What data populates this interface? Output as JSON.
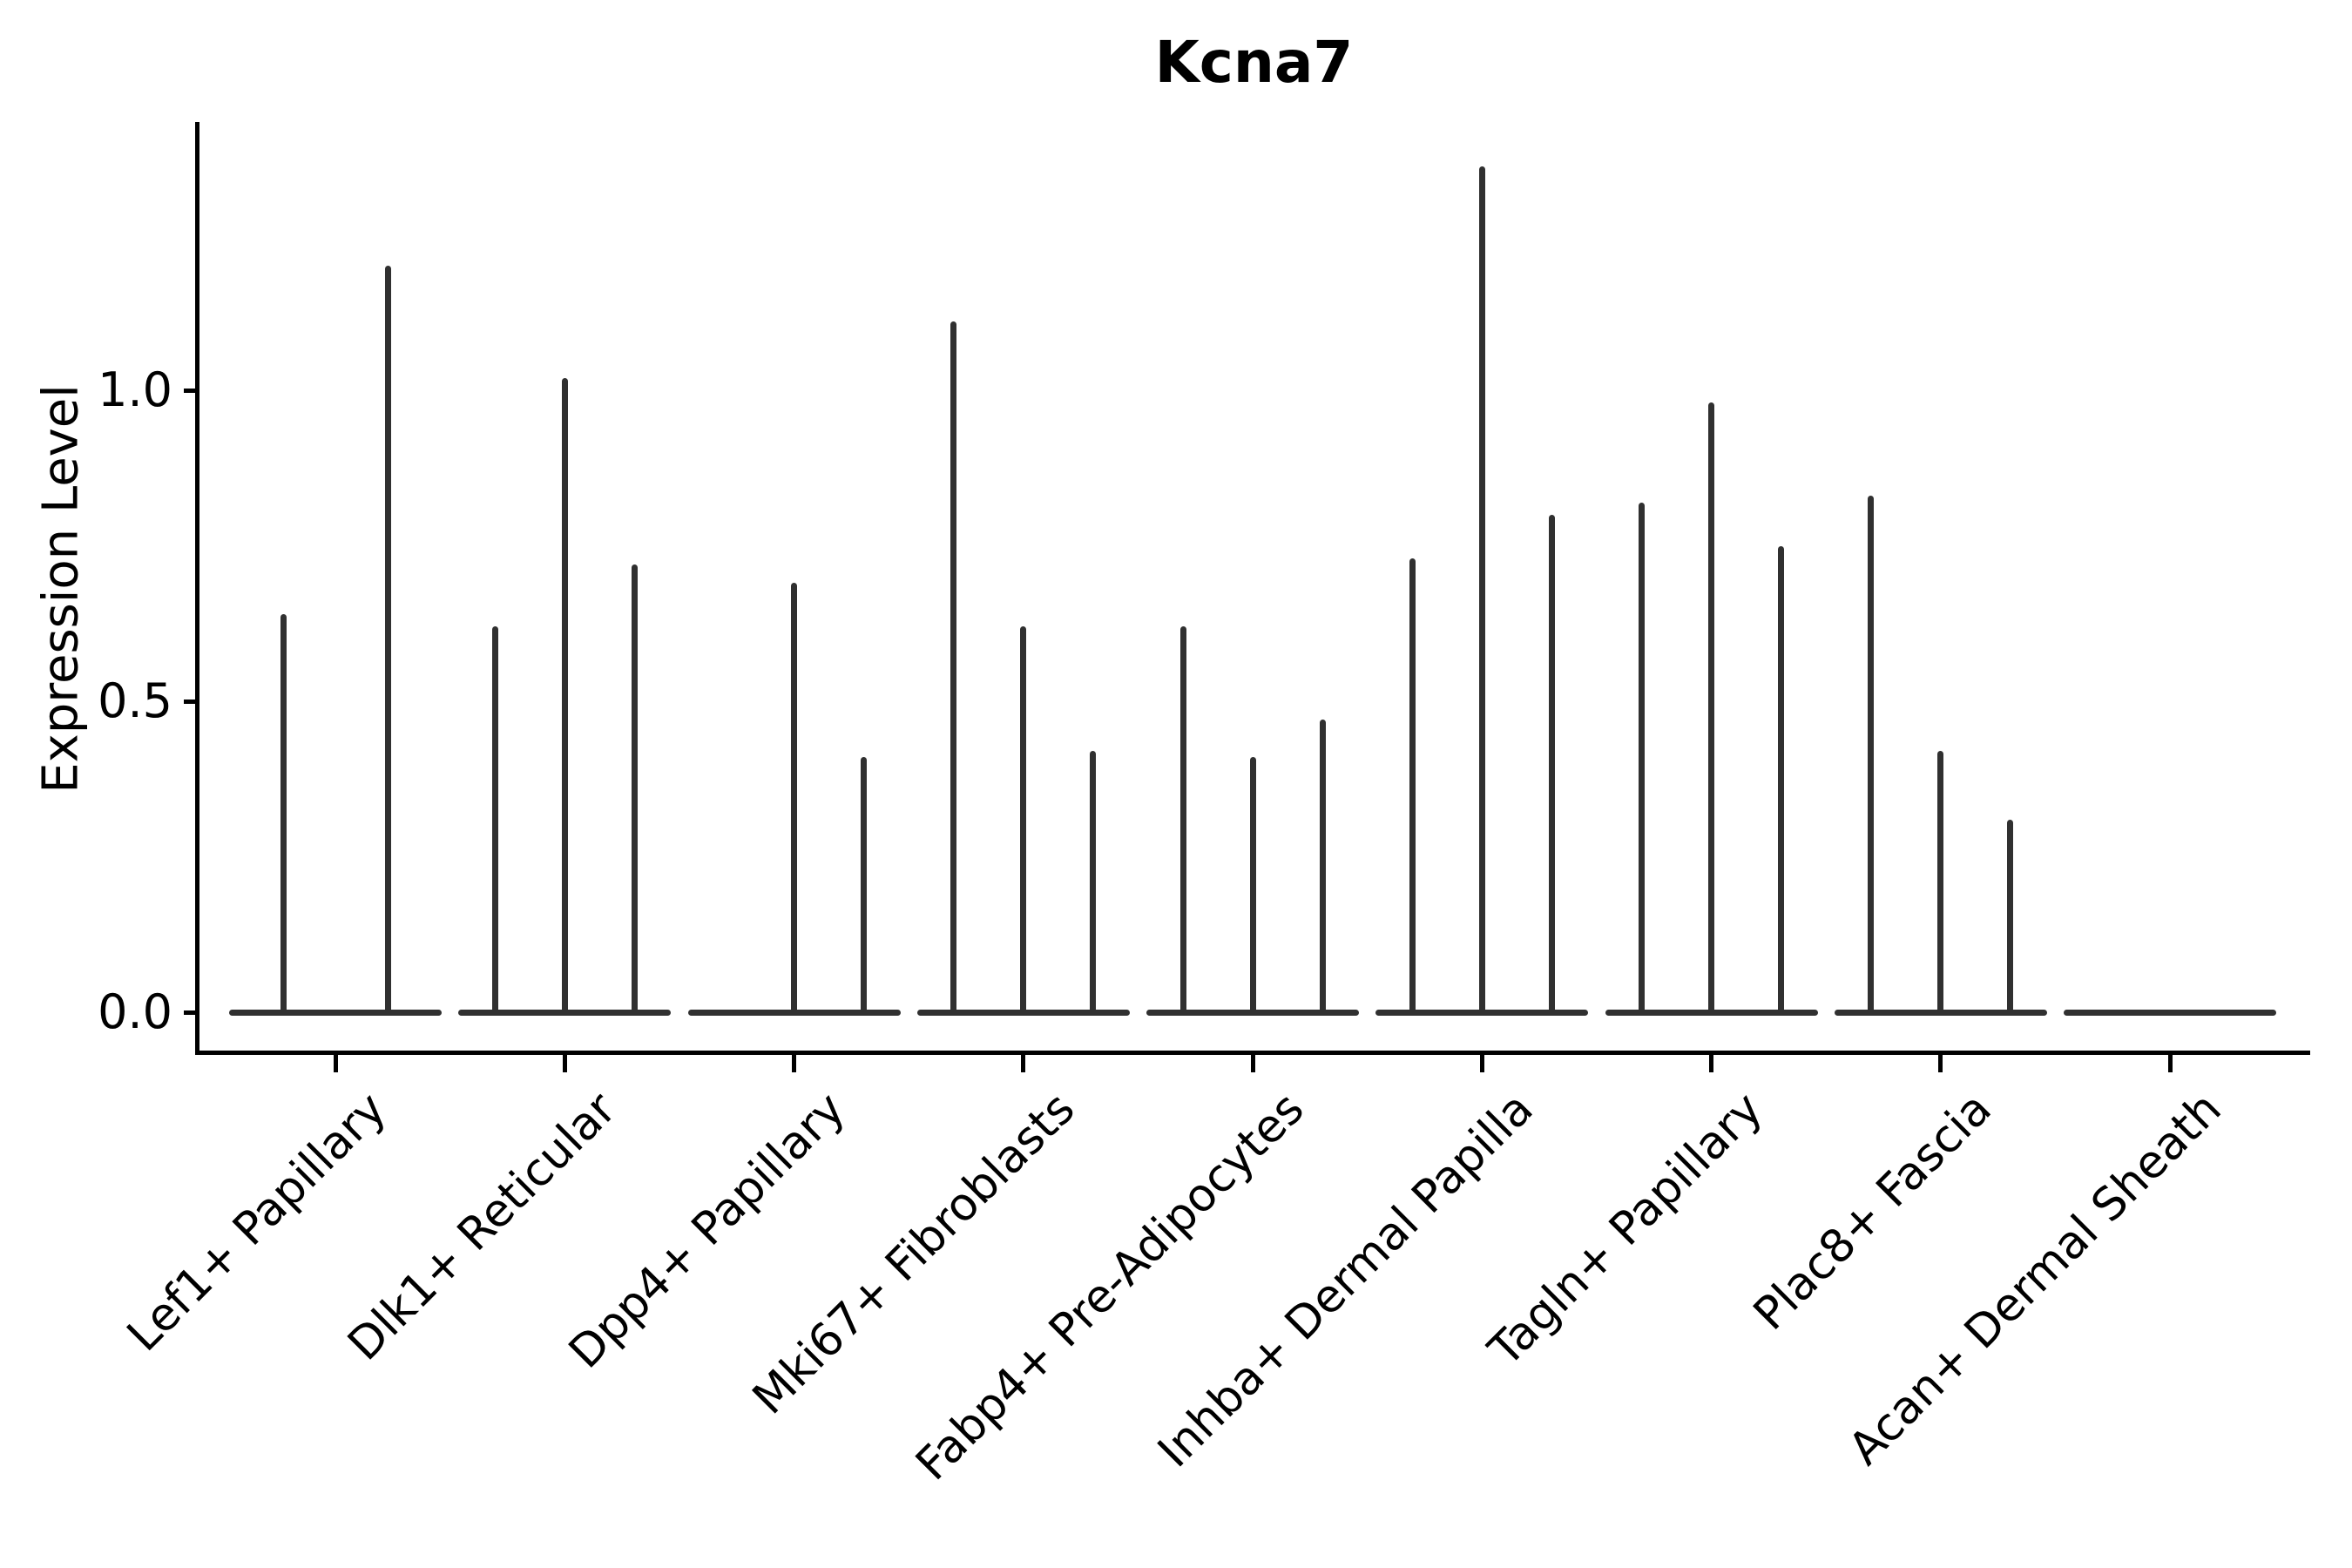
{
  "figure": {
    "title": "Kcna7",
    "ylabel": "Expression Level"
  },
  "chart_data": {
    "type": "violin",
    "title": "Kcna7",
    "xlabel": "",
    "ylabel": "Expression Level",
    "ylim": [
      -0.07,
      1.43
    ],
    "grid": false,
    "legend": "none",
    "yticks": [
      {
        "value": 0.0,
        "label": "0.0"
      },
      {
        "value": 0.5,
        "label": "0.5"
      },
      {
        "value": 1.0,
        "label": "1.0"
      }
    ],
    "description": "Violin plot of Kcna7 expression per fibroblast cluster; each cluster holds 2-3 collapsed violins (flat base at 0 with a thin density spike whose top is the max expression).",
    "categories": [
      {
        "label": "Lef1+ Papillary",
        "spike_maxima": [
          0.64,
          1.2
        ]
      },
      {
        "label": "Dlk1+ Reticular",
        "spike_maxima": [
          0.62,
          1.02,
          0.72
        ]
      },
      {
        "label": "Dpp4+ Papillary",
        "spike_maxima": [
          0.0,
          0.69,
          0.41
        ]
      },
      {
        "label": "Mki67+ Fibroblasts",
        "spike_maxima": [
          1.11,
          0.62,
          0.42
        ]
      },
      {
        "label": "Fabp4+ Pre-Adipocytes",
        "spike_maxima": [
          0.62,
          0.41,
          0.47
        ]
      },
      {
        "label": "Inhba+ Dermal Papilla",
        "spike_maxima": [
          0.73,
          1.36,
          0.8
        ]
      },
      {
        "label": "Tagln+ Papillary",
        "spike_maxima": [
          0.82,
          0.98,
          0.75
        ]
      },
      {
        "label": "Plac8+ Fascia",
        "spike_maxima": [
          0.83,
          0.42,
          0.31
        ]
      },
      {
        "label": "Acan+ Dermal Sheath",
        "spike_maxima": [
          0.0,
          0.0,
          0.0
        ]
      }
    ]
  }
}
